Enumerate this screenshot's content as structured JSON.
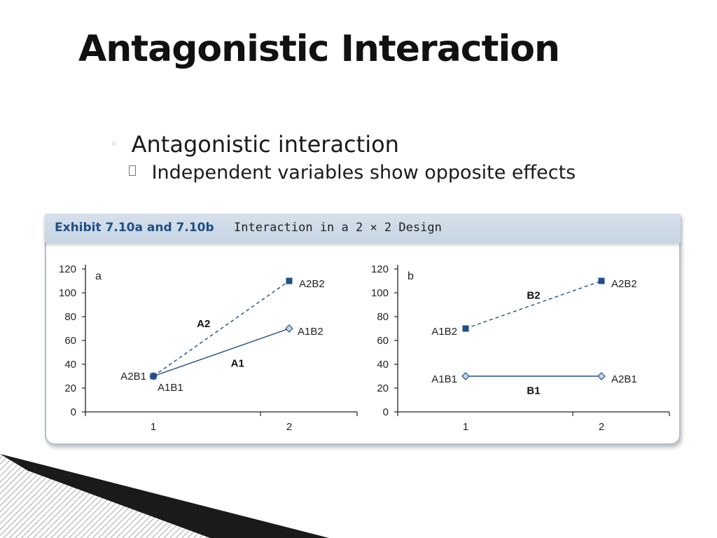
{
  "slide": {
    "title": "Antagonistic Interaction",
    "bullets": [
      {
        "text": "Antagonistic interaction",
        "marker": "◦"
      },
      {
        "text": "Independent variables show opposite effects",
        "marker": ""
      }
    ]
  },
  "exhibit": {
    "label": "Exhibit 7.10a and 7.10b",
    "caption": "Interaction in a 2 × 2 Design",
    "header_color": "#1f4f86"
  },
  "chart_data": [
    {
      "type": "line",
      "panel_label": "a",
      "x": [
        1,
        2
      ],
      "xticks": [
        "1",
        "2"
      ],
      "ylim": [
        0,
        120
      ],
      "yticks": [
        0,
        20,
        40,
        60,
        80,
        100,
        120
      ],
      "series": [
        {
          "name": "A1",
          "style": "solid",
          "marker": "diamond",
          "values": [
            30,
            70
          ],
          "point_labels": [
            "A1B1",
            "A1B2"
          ]
        },
        {
          "name": "A2",
          "style": "dashed",
          "marker": "square",
          "values": [
            30,
            110
          ],
          "point_labels": [
            "A2B1",
            "A2B2"
          ]
        }
      ]
    },
    {
      "type": "line",
      "panel_label": "b",
      "x": [
        1,
        2
      ],
      "xticks": [
        "1",
        "2"
      ],
      "ylim": [
        0,
        120
      ],
      "yticks": [
        0,
        20,
        40,
        60,
        80,
        100,
        120
      ],
      "series": [
        {
          "name": "B1",
          "style": "solid",
          "marker": "diamond",
          "values": [
            30,
            30
          ],
          "point_labels": [
            "A1B1",
            "A2B1"
          ]
        },
        {
          "name": "B2",
          "style": "dashed",
          "marker": "square",
          "values": [
            70,
            110
          ],
          "point_labels": [
            "A1B2",
            "A2B2"
          ]
        }
      ]
    }
  ],
  "colors": {
    "line": "#1f4f86",
    "axis": "#222222"
  }
}
